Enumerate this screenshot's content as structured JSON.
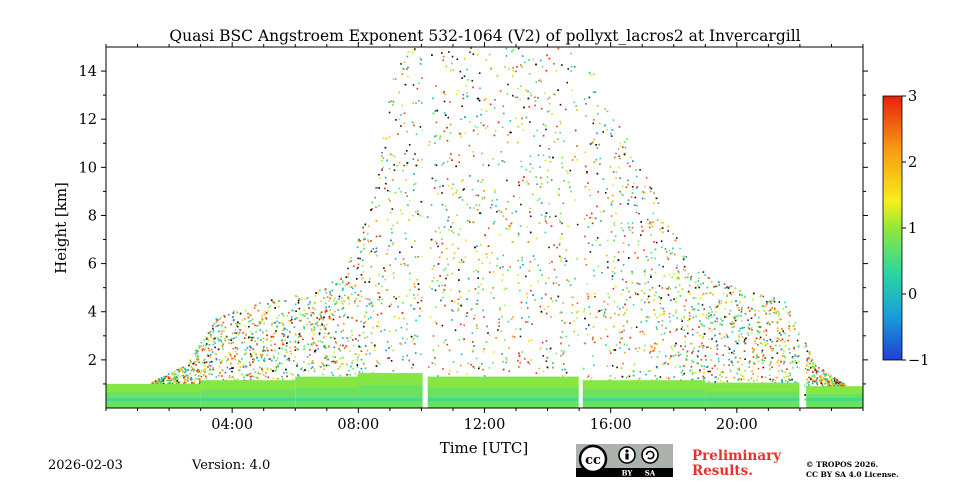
{
  "chart_data": {
    "type": "heatmap",
    "title": "Quasi BSC Angstroem Exponent 532-1064 (V2) of pollyxt_lacros2 at Invercargill",
    "xlabel": "Time [UTC]",
    "ylabel": "Height [km]",
    "xlim_hours": [
      0,
      24
    ],
    "ylim_km": [
      0,
      15
    ],
    "x_ticks": [
      4,
      8,
      12,
      16,
      20
    ],
    "x_tick_labels": [
      "04:00",
      "08:00",
      "12:00",
      "16:00",
      "20:00"
    ],
    "y_ticks": [
      2,
      4,
      6,
      8,
      10,
      12,
      14
    ],
    "y_tick_labels": [
      "2",
      "4",
      "6",
      "8",
      "10",
      "12",
      "14"
    ],
    "colorbar": {
      "range": [
        -1,
        3
      ],
      "ticks": [
        -1,
        0,
        1,
        2,
        3
      ],
      "tick_labels": [
        "−1",
        "0",
        "1",
        "2",
        "3"
      ],
      "colormap": "jet-like",
      "stops": [
        "#1f3fd6",
        "#1a9fd8",
        "#2bd6a0",
        "#92e83a",
        "#f6ef1a",
        "#f79a14",
        "#e8200e"
      ]
    },
    "gap_times_hours": [
      10.1,
      15.05,
      22.05
    ],
    "boundary_layer": {
      "segments": [
        {
          "start_h": 0.0,
          "end_h": 3.0,
          "top_km": 1.0
        },
        {
          "start_h": 3.0,
          "end_h": 6.0,
          "top_km": 1.15
        },
        {
          "start_h": 6.0,
          "end_h": 8.0,
          "top_km": 1.3
        },
        {
          "start_h": 8.0,
          "end_h": 10.1,
          "top_km": 1.45
        },
        {
          "start_h": 10.2,
          "end_h": 15.0,
          "top_km": 1.3
        },
        {
          "start_h": 15.1,
          "end_h": 19.0,
          "top_km": 1.15
        },
        {
          "start_h": 19.0,
          "end_h": 22.0,
          "top_km": 1.05
        },
        {
          "start_h": 22.2,
          "end_h": 24.0,
          "top_km": 0.9
        }
      ]
    },
    "scatter_profile": [
      {
        "hour": 0.5,
        "top_km": 0.5
      },
      {
        "hour": 2.5,
        "top_km": 1.8
      },
      {
        "hour": 3.5,
        "top_km": 3.8
      },
      {
        "hour": 5.0,
        "top_km": 4.5
      },
      {
        "hour": 6.5,
        "top_km": 4.8
      },
      {
        "hour": 7.5,
        "top_km": 5.5
      },
      {
        "hour": 8.5,
        "top_km": 9.0
      },
      {
        "hour": 9.2,
        "top_km": 15.0
      },
      {
        "hour": 12.0,
        "top_km": 15.0
      },
      {
        "hour": 15.0,
        "top_km": 15.0
      },
      {
        "hour": 17.0,
        "top_km": 10.0
      },
      {
        "hour": 18.5,
        "top_km": 6.0
      },
      {
        "hour": 20.0,
        "top_km": 5.0
      },
      {
        "hour": 21.5,
        "top_km": 4.5
      },
      {
        "hour": 22.5,
        "top_km": 1.8
      },
      {
        "hour": 24.0,
        "top_km": 0.5
      }
    ]
  },
  "footer": {
    "date": "2026-02-03",
    "version": "Version: 4.0",
    "preliminary_line1": "Preliminary",
    "preliminary_line2": "Results.",
    "copyright_line1": "© TROPOS 2026.",
    "copyright_line2": "CC BY SA 4.0 License."
  },
  "license_badge": {
    "cc": "cc",
    "by": "BY",
    "sa": "SA"
  }
}
